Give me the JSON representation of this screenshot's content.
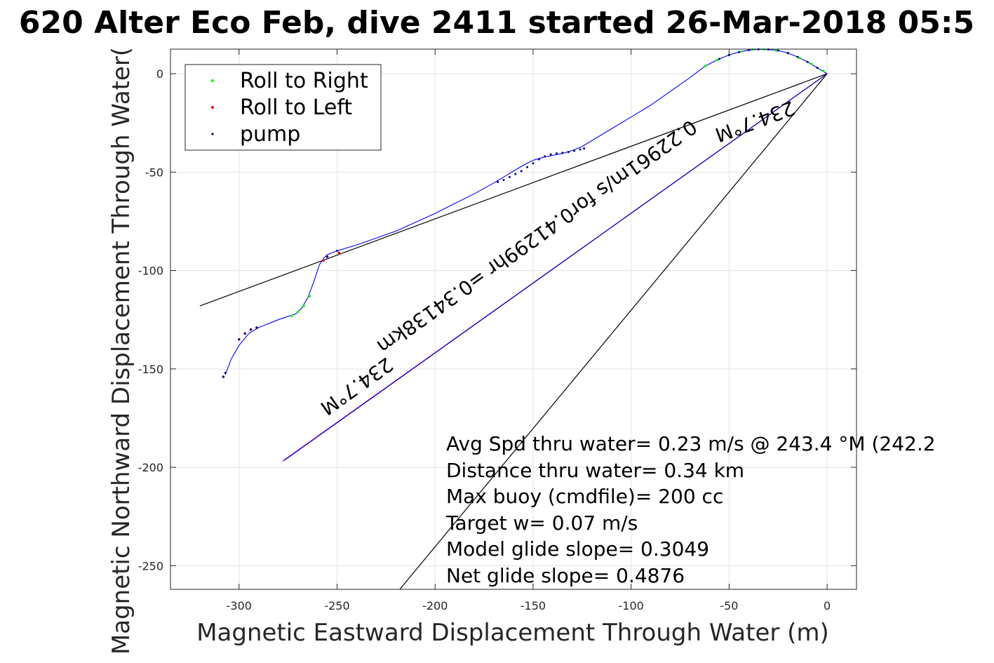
{
  "chart_data": {
    "type": "scatter",
    "title": "620 Alter Eco Feb, dive 2411 started 26-Mar-2018 05:5",
    "xlabel": "Magnetic Eastward Displacement Through Water (m)",
    "ylabel": "Magnetic Northward Displacement Through Water(",
    "xlim": [
      -335,
      15
    ],
    "ylim": [
      -262,
      12.5
    ],
    "xticks": [
      -300,
      -250,
      -200,
      -150,
      -100,
      -50,
      0
    ],
    "yticks": [
      -250,
      -200,
      -150,
      -100,
      -50,
      0
    ],
    "grid": true,
    "legend": {
      "placement": "top-left",
      "entries": [
        {
          "label": "Roll to Right",
          "color": "#00ff00"
        },
        {
          "label": "Roll to Left",
          "color": "#ff0000"
        },
        {
          "label": "pump",
          "color": "#000080"
        }
      ]
    },
    "track": {
      "name": "track",
      "color": "#0000ff",
      "x": [
        0,
        -5,
        -10,
        -15,
        -20,
        -25,
        -30,
        -35,
        -40,
        -45,
        -50,
        -55,
        -60,
        -62,
        -70,
        -80,
        -90,
        -100,
        -110,
        -120,
        -125,
        -130,
        -135,
        -140,
        -145,
        -150,
        -155,
        -160,
        -165,
        -170,
        -180,
        -200,
        -220,
        -240,
        -250,
        -255,
        -257,
        -259,
        -262,
        -265,
        -268,
        -271,
        -280,
        -290,
        -295,
        -300,
        -304,
        -307
      ],
      "y": [
        0,
        3,
        6,
        8.5,
        10.5,
        11.8,
        12.3,
        12.4,
        12,
        11,
        9.5,
        7.5,
        5,
        4,
        -2,
        -9,
        -16,
        -22,
        -28,
        -34,
        -37,
        -39,
        -40.5,
        -41.5,
        -42.5,
        -44,
        -46.5,
        -49.5,
        -52.5,
        -55.5,
        -61,
        -71,
        -80,
        -87,
        -90,
        -92,
        -94,
        -97,
        -106,
        -114,
        -119,
        -122,
        -125,
        -129,
        -132,
        -138,
        -145,
        -153
      ]
    },
    "roll_right_points": {
      "x": [
        -2,
        -8,
        -14,
        -20,
        -26,
        -32,
        -38,
        -44,
        -50,
        -56,
        -62,
        -264,
        -267,
        -270,
        -273
      ],
      "y": [
        1.5,
        5,
        8,
        10.5,
        11.8,
        12.3,
        12.3,
        11.2,
        9.5,
        7,
        4,
        -113,
        -118,
        -121,
        -123
      ]
    },
    "roll_left_points": {
      "x": [
        -249,
        -255,
        -257,
        -291,
        -294,
        -297,
        -300,
        -308
      ],
      "y": [
        -91,
        -93,
        -95,
        -129,
        -130,
        -132,
        -135,
        -154
      ]
    },
    "pump_points": {
      "x": [
        -168,
        -165,
        -162,
        -159,
        -156,
        -153,
        -150,
        -147,
        -144,
        -141,
        -138,
        -135,
        -132,
        -129,
        -126,
        -124,
        -250,
        -255,
        -291,
        -294,
        -297,
        -300,
        -307,
        -308,
        -5,
        -10,
        -15,
        -20,
        -25,
        -30,
        -35,
        -40,
        -45,
        -50,
        -55
      ],
      "y": [
        -55,
        -54,
        -52.5,
        -51,
        -49.5,
        -47.5,
        -45.5,
        -43.5,
        -42,
        -41,
        -40.5,
        -40.2,
        -39.8,
        -39.2,
        -38.5,
        -38,
        -90,
        -93,
        -129,
        -130,
        -132,
        -135,
        -152,
        -154,
        3,
        6,
        8.5,
        10.5,
        11.8,
        12.3,
        12.4,
        12,
        11,
        9.5,
        7.5
      ]
    },
    "lines": [
      {
        "name": "black-line-1",
        "color": "#000000",
        "x": [
          0,
          -320
        ],
        "y": [
          0,
          -118
        ]
      },
      {
        "name": "black-line-2",
        "color": "#000000",
        "x": [
          0,
          -218
        ],
        "y": [
          0,
          -262
        ]
      },
      {
        "name": "magenta-line",
        "color": "#ff00ff",
        "x": [
          0,
          -278
        ],
        "y": [
          0,
          -197
        ]
      },
      {
        "name": "navy-line",
        "color": "#0000aa",
        "x": [
          0,
          -277
        ],
        "y": [
          0,
          -196.5
        ]
      }
    ],
    "rotated_labels": [
      {
        "text": "234.7°M",
        "x": -38,
        "y": -21
      },
      {
        "text": "0.22961m/s for0.41299hr =0.34138km",
        "x": -150,
        "y": -80
      },
      {
        "text": "234.7°M",
        "x": -242,
        "y": -156
      }
    ],
    "annotations": [
      "Avg Spd thru water=  0.23 m/s @ 243.4 °M (242.2",
      "Distance thru water=  0.34 km",
      "Max buoy (cmdfile)= 200 cc",
      "Target w= 0.07 m/s",
      "Model glide slope= 0.3049",
      "Net glide slope= 0.4876"
    ]
  }
}
